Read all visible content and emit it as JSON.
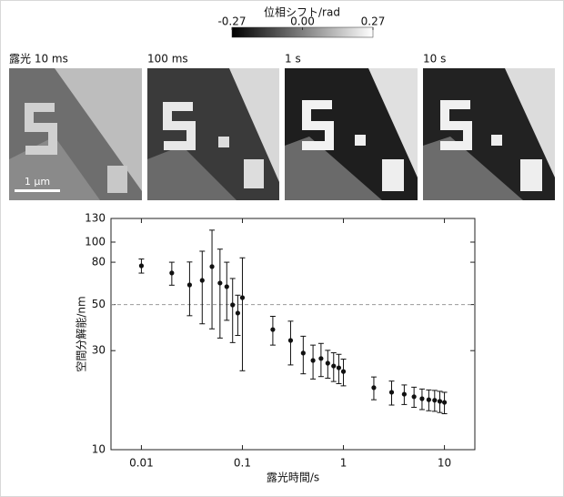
{
  "colorbar": {
    "title": "位相シフト/rad",
    "ticks": [
      -0.27,
      {
        "value": 0,
        "label": "0.00"
      },
      0.27
    ]
  },
  "panels": [
    {
      "label": "露光 10 ms"
    },
    {
      "label": "100 ms"
    },
    {
      "label": "1 s"
    },
    {
      "label": "10 s"
    }
  ],
  "scale_bar": "1 μm",
  "chart_data": {
    "type": "scatter",
    "x_label": "露光時間/s",
    "y_label": "空間分解能/nm",
    "x": [
      0.01,
      0.02,
      0.03,
      0.04,
      0.05,
      0.06,
      0.07,
      0.08,
      0.09,
      0.1,
      0.2,
      0.3,
      0.4,
      0.5,
      0.6,
      0.7,
      0.8,
      0.9,
      1,
      2,
      3,
      4,
      5,
      6,
      7,
      8,
      9,
      10
    ],
    "values": [
      76.9,
      71,
      62.2,
      65.4,
      76.2,
      63.5,
      61,
      49.8,
      45.5,
      54,
      37.9,
      33.6,
      29.2,
      26.9,
      27.5,
      26.1,
      25.3,
      24.8,
      23.8,
      19.9,
      18.9,
      18.5,
      18,
      17.6,
      17.4,
      17.3,
      17.1,
      16.9
    ],
    "errors": [
      6,
      9,
      18,
      25,
      38,
      29,
      19,
      17,
      10,
      30,
      6,
      8,
      6,
      5,
      5,
      4,
      4,
      4,
      3.5,
      2.5,
      2.5,
      2,
      2,
      2,
      2,
      2,
      2,
      2
    ],
    "color": "#111111",
    "xlim": [
      0.005,
      20
    ],
    "ylim": [
      10,
      130
    ],
    "xticks": [
      0.01,
      0.1,
      1,
      10
    ],
    "yticks": [
      10,
      30,
      50,
      80,
      100,
      130
    ],
    "x_log": true,
    "y_log": true,
    "reference_line": 50
  }
}
